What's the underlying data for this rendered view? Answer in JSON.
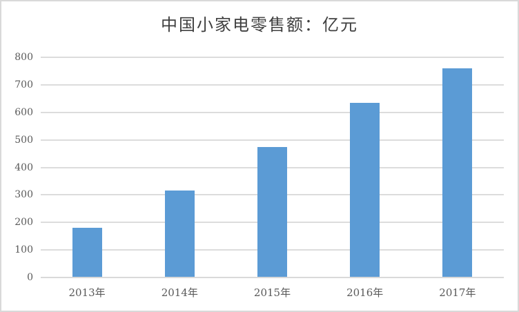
{
  "chart_data": {
    "type": "bar",
    "title": "中国小家电零售额：亿元",
    "categories": [
      "2013年",
      "2014年",
      "2015年",
      "2016年",
      "2017年"
    ],
    "values": [
      180,
      315,
      475,
      635,
      760
    ],
    "xlabel": "",
    "ylabel": "",
    "ylim": [
      0,
      800
    ],
    "ytick_interval": 100,
    "yticks": [
      0,
      100,
      200,
      300,
      400,
      500,
      600,
      700,
      800
    ],
    "grid": true,
    "legend": false,
    "colors": {
      "bar": "#5b9bd5",
      "gridline": "#dcdcdc",
      "axis_line": "#d9d9d9",
      "tick_label": "#595959",
      "title": "#3f3f3f",
      "frame_border": "#d9d9d9",
      "background": "#ffffff"
    }
  }
}
